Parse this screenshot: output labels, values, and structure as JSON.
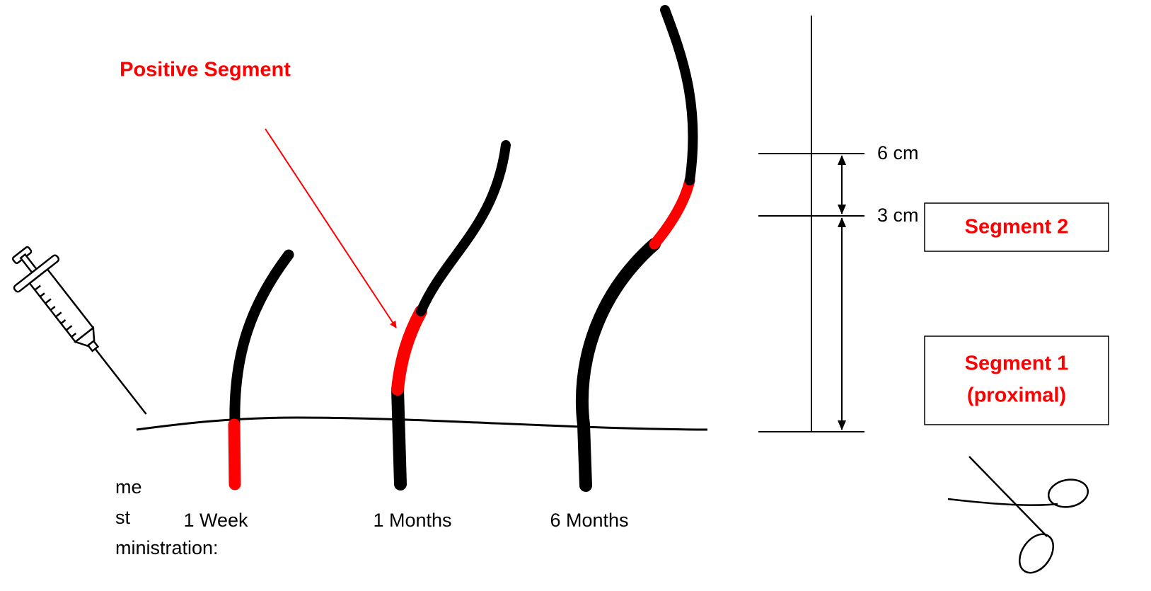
{
  "callout": "Positive Segment",
  "time_labels": [
    "1 Week",
    "1 Months",
    "6 Months"
  ],
  "scale_labels": [
    "6 cm",
    "3 cm"
  ],
  "segment_boxes": [
    [
      "Segment 2"
    ],
    [
      "Segment 1",
      "(proximal)"
    ]
  ],
  "left_note": [
    "me",
    "st",
    "ministration:"
  ]
}
